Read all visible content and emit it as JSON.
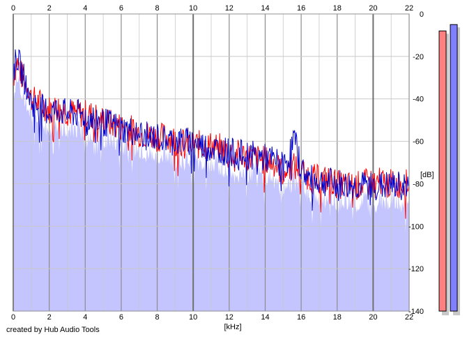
{
  "credit": "created by Hub Audio Tools",
  "chart_data": {
    "type": "area",
    "xlabel": "[kHz]",
    "ylabel": "[dB]",
    "xlim": [
      0,
      22
    ],
    "ylim": [
      -140,
      0
    ],
    "x_ticks": [
      0,
      2,
      4,
      6,
      8,
      10,
      12,
      14,
      16,
      18,
      20,
      22
    ],
    "y_ticks": [
      0,
      -20,
      -40,
      -60,
      -80,
      -100,
      -120,
      -140
    ],
    "grid": true,
    "colors": {
      "fill": "#c4c4ff",
      "red": "#ff0000",
      "blue": "#0000cc",
      "grid": "#c8c8c8",
      "major_grid": "#8c8c8c"
    },
    "series": [
      {
        "color": "red",
        "x": [
          0,
          0.2,
          0.5,
          0.8,
          1.0,
          1.5,
          2.0,
          2.5,
          3.0,
          3.5,
          4.0,
          4.5,
          5.0,
          5.5,
          6.0,
          6.5,
          7.0,
          7.5,
          8.0,
          8.5,
          9.0,
          9.5,
          10.0,
          10.5,
          11.0,
          11.5,
          12.0,
          12.5,
          13.0,
          13.5,
          14.0,
          14.5,
          15.0,
          15.3,
          15.6,
          16.0,
          16.5,
          17.0,
          17.5,
          18.0,
          18.5,
          19.0,
          19.5,
          20.0,
          20.5,
          21.0,
          21.5,
          22.0
        ],
        "values": [
          -30,
          -22,
          -30,
          -33,
          -40,
          -42,
          -45,
          -44,
          -46,
          -47,
          -47,
          -48,
          -50,
          -52,
          -53,
          -54,
          -56,
          -57,
          -58,
          -58,
          -59,
          -61,
          -61,
          -62,
          -62,
          -63,
          -65,
          -66,
          -67,
          -68,
          -69,
          -70,
          -75,
          -72,
          -72,
          -73,
          -77,
          -78,
          -78,
          -80,
          -81,
          -81,
          -80,
          -79,
          -79,
          -80,
          -80,
          -80
        ]
      },
      {
        "color": "blue",
        "x": [
          0,
          0.2,
          0.5,
          0.8,
          1.0,
          1.5,
          2.0,
          2.5,
          3.0,
          3.5,
          4.0,
          4.5,
          5.0,
          5.5,
          6.0,
          6.5,
          7.0,
          7.5,
          8.0,
          8.5,
          9.0,
          9.5,
          10.0,
          10.5,
          11.0,
          11.5,
          12.0,
          12.5,
          13.0,
          13.5,
          14.0,
          14.5,
          15.0,
          15.3,
          15.6,
          16.0,
          16.5,
          17.0,
          17.5,
          18.0,
          18.5,
          19.0,
          19.5,
          20.0,
          20.5,
          21.0,
          21.5,
          22.0
        ],
        "values": [
          -28,
          -20,
          -28,
          -35,
          -42,
          -44,
          -46,
          -45,
          -47,
          -47,
          -48,
          -49,
          -51,
          -52,
          -54,
          -55,
          -56,
          -58,
          -58,
          -59,
          -60,
          -60,
          -60,
          -62,
          -63,
          -64,
          -65,
          -66,
          -66,
          -67,
          -68,
          -69,
          -72,
          -68,
          -58,
          -73,
          -78,
          -79,
          -79,
          -80,
          -81,
          -81,
          -81,
          -81,
          -81,
          -81,
          -81,
          -81
        ]
      }
    ]
  },
  "meters": [
    {
      "color": "#ff8080",
      "level_db": -8
    },
    {
      "color": "#8080ff",
      "level_db": -5
    }
  ]
}
